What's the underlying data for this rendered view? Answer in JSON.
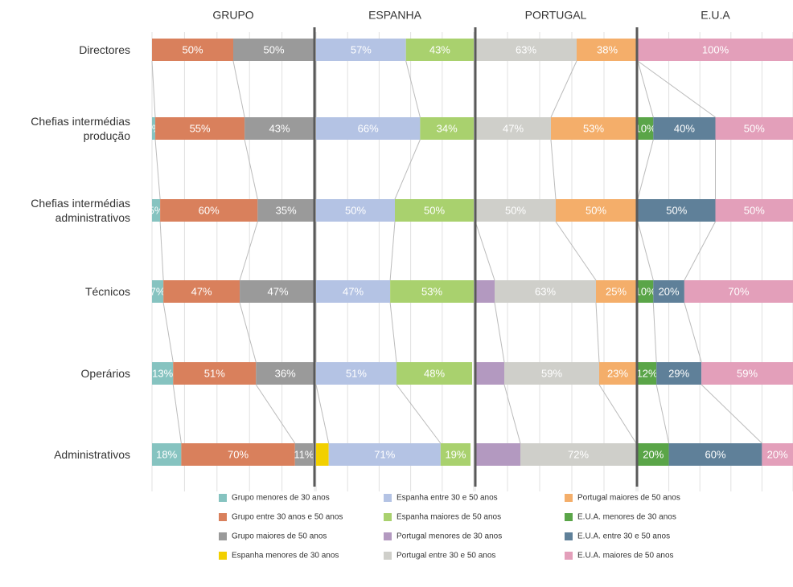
{
  "chart_data": {
    "type": "bar",
    "orientation": "horizontal",
    "stacked": true,
    "categories": [
      "Directores",
      "Chefias intermédias produção",
      "Chefias intermédias administrativos",
      "Técnicos",
      "Operários",
      "Administrativos"
    ],
    "xlim": [
      0,
      100
    ],
    "xticks": [
      0,
      20,
      40,
      60,
      80,
      100
    ],
    "grid": true,
    "legend": "bottom",
    "panels": [
      {
        "title": "GRUPO",
        "series": [
          {
            "name": "Grupo menores de 30 anos",
            "color": "#86c3c0",
            "values": [
              0,
              2,
              5,
              7,
              13,
              18
            ],
            "value_labels": [
              null,
              "2%",
              "5%",
              "7%",
              "13%",
              "18%"
            ]
          },
          {
            "name": "Grupo entre 30 anos e 50 anos",
            "color": "#d9805c",
            "values": [
              50,
              55,
              60,
              47,
              51,
              70
            ],
            "value_labels": [
              "50%",
              "55%",
              "60%",
              "47%",
              "51%",
              "70%"
            ]
          },
          {
            "name": "Grupo maiores de 50 anos",
            "color": "#9a9a9a",
            "values": [
              50,
              43,
              35,
              47,
              36,
              11
            ],
            "value_labels": [
              "50%",
              "43%",
              "35%",
              "47%",
              "36%",
              "11%"
            ]
          }
        ]
      },
      {
        "title": "ESPANHA",
        "series": [
          {
            "name": "Espanha menores de 30 anos",
            "color": "#f2d000",
            "values": [
              0,
              0,
              0,
              0,
              0,
              8
            ],
            "value_labels": [
              null,
              null,
              null,
              null,
              null,
              null
            ]
          },
          {
            "name": "Espanha entre 30 e 50 anos",
            "color": "#b4c3e4",
            "values": [
              57,
              66,
              50,
              47,
              51,
              71
            ],
            "value_labels": [
              "57%",
              "66%",
              "50%",
              "47%",
              "51%",
              "71%"
            ]
          },
          {
            "name": "Espanha maiores de 50 anos",
            "color": "#a9d16e",
            "values": [
              43,
              34,
              50,
              53,
              48,
              19
            ],
            "value_labels": [
              "43%",
              "34%",
              "50%",
              "53%",
              "48%",
              "19%"
            ]
          }
        ]
      },
      {
        "title": "PORTUGAL",
        "series": [
          {
            "name": "Portugal menores de 30 anos",
            "color": "#b399c0",
            "values": [
              0,
              0,
              0,
              12,
              18,
              28
            ],
            "value_labels": [
              null,
              null,
              null,
              null,
              null,
              null
            ]
          },
          {
            "name": "Portugal entre 30 e 50 anos",
            "color": "#cfcfca",
            "values": [
              63,
              47,
              50,
              63,
              59,
              72
            ],
            "value_labels": [
              "63%",
              "47%",
              "50%",
              "63%",
              "59%",
              "72%"
            ]
          },
          {
            "name": "Portugal maiores de 50 anos",
            "color": "#f4ae6a",
            "values": [
              38,
              53,
              50,
              25,
              23,
              0
            ],
            "value_labels": [
              "38%",
              "53%",
              "50%",
              "25%",
              "23%",
              null
            ]
          }
        ]
      },
      {
        "title": "E.U.A",
        "series": [
          {
            "name": "E.U.A. menores de 30 anos",
            "color": "#5aa548",
            "values": [
              0,
              10,
              0,
              10,
              12,
              20
            ],
            "value_labels": [
              null,
              "10%",
              null,
              "10%",
              "12%",
              "20%"
            ]
          },
          {
            "name": "E.U.A. entre 30 e 50 anos",
            "color": "#5f8099",
            "values": [
              0,
              40,
              50,
              20,
              29,
              60
            ],
            "value_labels": [
              null,
              "40%",
              "50%",
              "20%",
              "29%",
              "60%"
            ]
          },
          {
            "name": "E.U.A. maiores de 50 anos",
            "color": "#e39fba",
            "values": [
              100,
              50,
              50,
              70,
              59,
              20
            ],
            "value_labels": [
              "100%",
              "50%",
              "50%",
              "70%",
              "59%",
              "20%"
            ]
          }
        ]
      }
    ]
  }
}
